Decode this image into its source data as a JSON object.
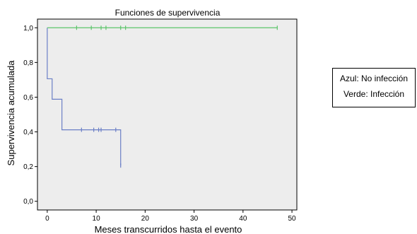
{
  "chart_data": {
    "type": "line",
    "title": "Funciones de supervivencia",
    "xlabel": "Meses transcurridos hasta el evento",
    "ylabel": "Supervivencia acumulada",
    "xlim": [
      -2,
      51
    ],
    "ylim": [
      -0.05,
      1.05
    ],
    "x_ticks": [
      0,
      10,
      20,
      30,
      40,
      50
    ],
    "x_tick_labels": [
      "0",
      "10",
      "20",
      "30",
      "40",
      "50"
    ],
    "y_ticks": [
      0.0,
      0.2,
      0.4,
      0.6,
      0.8,
      1.0
    ],
    "y_tick_labels": [
      "0,0",
      "0,2",
      "0,4",
      "0,6",
      "0,8",
      "1,0"
    ],
    "grid": false,
    "series": [
      {
        "color": "#6b7fc6",
        "steps": [
          [
            0,
            1.0
          ],
          [
            0,
            0.706
          ],
          [
            1,
            0.706
          ],
          [
            1,
            0.588
          ],
          [
            3,
            0.588
          ],
          [
            3,
            0.412
          ],
          [
            15,
            0.412
          ],
          [
            15,
            0.206
          ]
        ],
        "censored": [
          [
            7,
            0.412
          ],
          [
            9.5,
            0.412
          ],
          [
            10.5,
            0.412
          ],
          [
            11,
            0.412
          ],
          [
            14,
            0.412
          ],
          [
            15,
            0.206
          ]
        ]
      },
      {
        "color": "#5cc46a",
        "steps": [
          [
            0,
            1.0
          ],
          [
            47,
            1.0
          ]
        ],
        "censored": [
          [
            6,
            1.0
          ],
          [
            9,
            1.0
          ],
          [
            11,
            1.0
          ],
          [
            12,
            1.0
          ],
          [
            15,
            1.0
          ],
          [
            16,
            1.0
          ],
          [
            47,
            1.0
          ]
        ]
      }
    ]
  },
  "legend": {
    "line1": "Azul: No infección",
    "line2": "Verde: Infección"
  }
}
